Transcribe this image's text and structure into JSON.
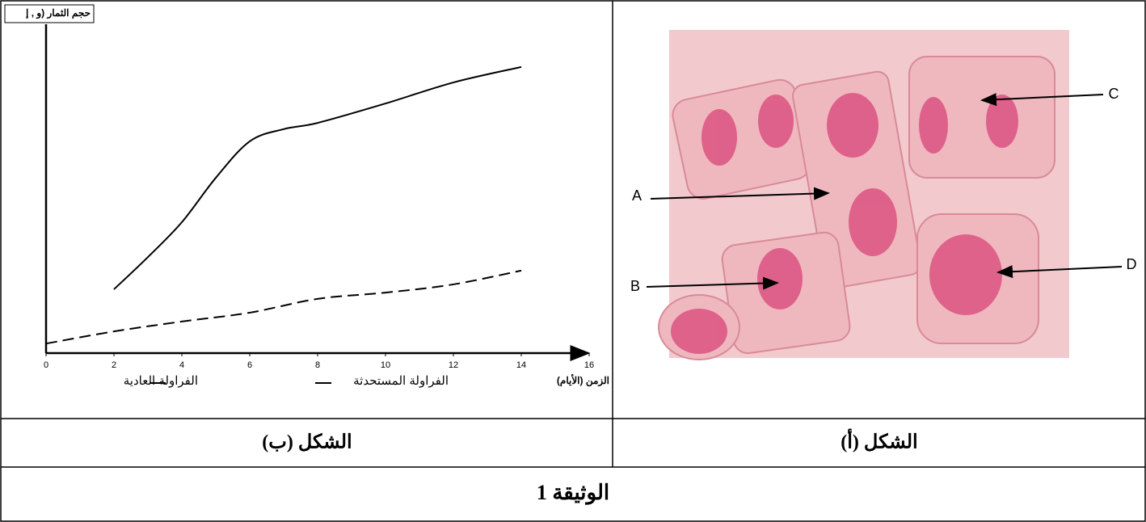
{
  "chart_data": {
    "type": "line",
    "y_label": "حجم الثمار (و , إ",
    "x_label": "الزمن (الأيام)",
    "xlim": [
      0,
      16
    ],
    "xticks": [
      0,
      2,
      4,
      6,
      8,
      10,
      12,
      14,
      16
    ],
    "ylim": [
      0,
      100
    ],
    "series": [
      {
        "name": "الفراولة المستحدثة",
        "color": "#000000",
        "dash": "solid",
        "x": [
          2,
          3,
          4,
          5,
          6,
          7,
          8,
          10,
          12,
          14
        ],
        "values": [
          19.4,
          29.2,
          39.8,
          53.3,
          64.4,
          68.1,
          70.0,
          75.9,
          82.3,
          87.0
        ]
      },
      {
        "name": "الفراولة العادية",
        "color": "#000000",
        "dash": "dashed",
        "x": [
          0,
          2,
          4,
          6,
          8,
          10,
          12,
          14
        ],
        "values": [
          2.9,
          6.6,
          9.6,
          12.3,
          16.5,
          18.4,
          20.9,
          25.1
        ]
      }
    ]
  },
  "figure_a": {
    "labels": [
      "A",
      "B",
      "C",
      "D"
    ]
  },
  "captions": {
    "left": "الشكل (ب)",
    "right": "الشكل (أ)"
  },
  "document_title": "الوثيقة 1"
}
